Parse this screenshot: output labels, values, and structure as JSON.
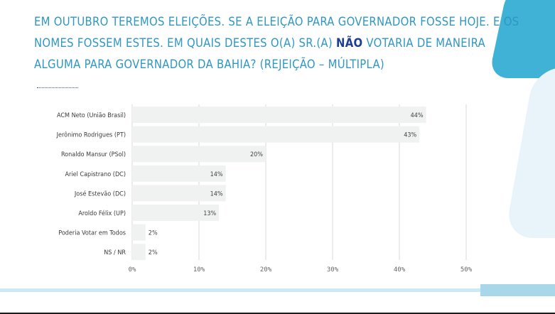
{
  "title": {
    "part1": "EM OUTUBRO TEREMOS ELEIÇÕES. SE A ELEIÇÃO PARA GOVERNADOR FOSSE HOJE. E OS NOMES FOSSEM ESTES. EM QUAIS DESTES O(A) SR.(A) ",
    "emphasis": "NÃO",
    "part2": " VOTARIA DE MANEIRA ALGUMA PARA GOVERNADOR DA BAHIA? (REJEIÇÃO – MÚLTIPLA)"
  },
  "colors": {
    "title": "#2f97c4",
    "emphasis": "#1c3f91",
    "bar": "#f0f1f1",
    "accent": "#3fb2d5"
  },
  "chart_data": {
    "type": "bar",
    "orientation": "horizontal",
    "categories": [
      "ACM Neto (União Brasil)",
      "Jerônimo Rodrigues (PT)",
      "Ronaldo Mansur (PSol)",
      "Ariel Capistrano (DC)",
      "José Estevão (DC)",
      "Aroldo Félix (UP)",
      "Poderia Votar em Todos",
      "NS / NR"
    ],
    "values": [
      44,
      43,
      20,
      14,
      14,
      13,
      2,
      2
    ],
    "value_labels": [
      "44%",
      "43%",
      "20%",
      "14%",
      "14%",
      "13%",
      "2%",
      "2%"
    ],
    "xlim": [
      0,
      50
    ],
    "x_ticks": [
      0,
      10,
      20,
      30,
      40,
      50
    ],
    "x_tick_labels": [
      "0%",
      "10%",
      "20%",
      "30%",
      "40%",
      "50%"
    ],
    "grid": true,
    "legend": "none"
  }
}
